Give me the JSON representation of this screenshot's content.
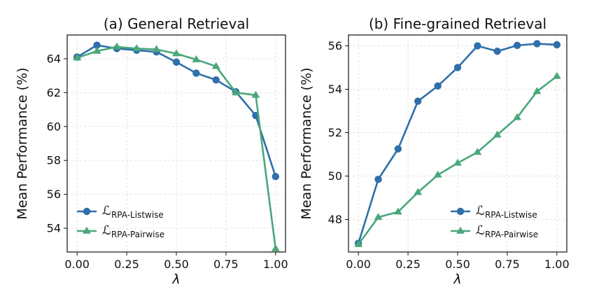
{
  "colors": {
    "listwise": "#2f6faa",
    "pairwise": "#4aa77a"
  },
  "chart_data": [
    {
      "type": "line",
      "title": "(a) General Retrieval",
      "xlabel": "λ",
      "ylabel": "Mean Performance (%)",
      "xlim": [
        -0.05,
        1.05
      ],
      "ylim": [
        52.6,
        65.4
      ],
      "xticks": [
        0.0,
        0.25,
        0.5,
        0.75,
        1.0
      ],
      "xtick_labels": [
        "0.00",
        "0.25",
        "0.50",
        "0.75",
        "1.00"
      ],
      "yticks": [
        54,
        56,
        58,
        60,
        62,
        64
      ],
      "ytick_labels": [
        "54",
        "56",
        "58",
        "60",
        "62",
        "64"
      ],
      "grid": true,
      "legend_position": "lower-left",
      "x": [
        0.0,
        0.1,
        0.2,
        0.3,
        0.4,
        0.5,
        0.6,
        0.7,
        0.8,
        0.9,
        1.0
      ],
      "series": [
        {
          "name": "L_RPA-Listwise",
          "legend_symbol": "ℒ",
          "legend_sub": "RPA-Listwise",
          "marker": "circle",
          "color": "#2f6faa",
          "values": [
            64.1,
            64.8,
            64.6,
            64.5,
            64.4,
            63.8,
            63.15,
            62.75,
            62.05,
            60.65,
            57.05
          ]
        },
        {
          "name": "L_RPA-Pairwise",
          "legend_symbol": "ℒ",
          "legend_sub": "RPA-Pairwise",
          "marker": "triangle",
          "color": "#4aa77a",
          "values": [
            64.05,
            64.45,
            64.7,
            64.6,
            64.55,
            64.3,
            63.95,
            63.55,
            62.0,
            61.85,
            52.8
          ]
        }
      ]
    },
    {
      "type": "line",
      "title": "(b) Fine-grained Retrieval",
      "xlabel": "λ",
      "ylabel": "Mean Performance (%)",
      "xlim": [
        -0.05,
        1.05
      ],
      "ylim": [
        46.5,
        56.5
      ],
      "xticks": [
        0.0,
        0.25,
        0.5,
        0.75,
        1.0
      ],
      "xtick_labels": [
        "0.00",
        "0.25",
        "0.50",
        "0.75",
        "1.00"
      ],
      "yticks": [
        48,
        50,
        52,
        54,
        56
      ],
      "ytick_labels": [
        "48",
        "50",
        "52",
        "54",
        "56"
      ],
      "grid": true,
      "legend_position": "lower-right",
      "x": [
        0.0,
        0.1,
        0.2,
        0.3,
        0.4,
        0.5,
        0.6,
        0.7,
        0.8,
        0.9,
        1.0
      ],
      "series": [
        {
          "name": "L_RPA-Listwise",
          "legend_symbol": "ℒ",
          "legend_sub": "RPA-Listwise",
          "marker": "circle",
          "color": "#2f6faa",
          "values": [
            46.9,
            49.85,
            51.25,
            53.45,
            54.15,
            55.0,
            56.0,
            55.75,
            56.02,
            56.1,
            56.05
          ]
        },
        {
          "name": "L_RPA-Pairwise",
          "legend_symbol": "ℒ",
          "legend_sub": "RPA-Pairwise",
          "marker": "triangle",
          "color": "#4aa77a",
          "values": [
            46.85,
            48.1,
            48.35,
            49.25,
            50.05,
            50.6,
            51.1,
            51.9,
            52.7,
            53.9,
            54.6
          ]
        }
      ]
    }
  ]
}
